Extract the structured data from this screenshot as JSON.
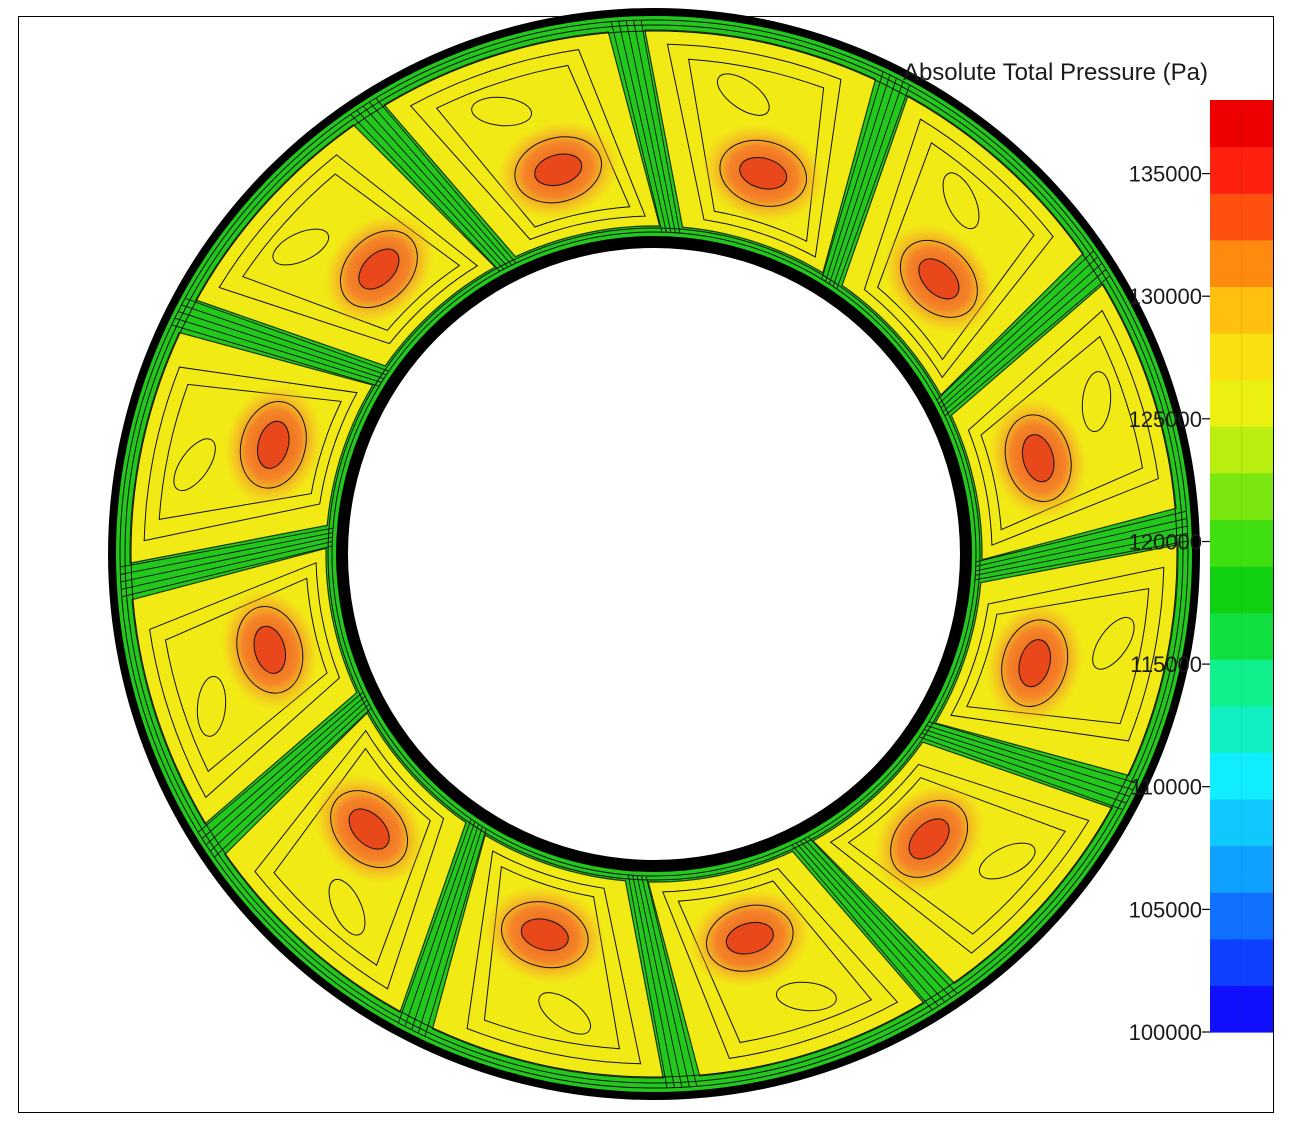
{
  "legend": {
    "title": "Absolute Total Pressure (Pa)",
    "ticks": [
      "135000",
      "130000",
      "125000",
      "120000",
      "115000",
      "110000",
      "105000",
      "100000"
    ],
    "min": 100000,
    "max": 138000,
    "colors": [
      "#1010ff",
      "#1040ff",
      "#1070ff",
      "#10a0ff",
      "#10c8ff",
      "#10eeff",
      "#10f0c0",
      "#10f08c",
      "#10e040",
      "#10d010",
      "#40e010",
      "#7ae810",
      "#b8ee10",
      "#ecf010",
      "#fae010",
      "#ffc010",
      "#ff8a10",
      "#ff5010",
      "#ff2010",
      "#ee0000"
    ]
  },
  "field": {
    "segments": 12,
    "inner_color": "#ffffff",
    "wall_color": "#000000",
    "green": "#22cc22",
    "yellow": "#f4ee10",
    "orange": "#f48020",
    "red": "#ee4a18"
  }
}
